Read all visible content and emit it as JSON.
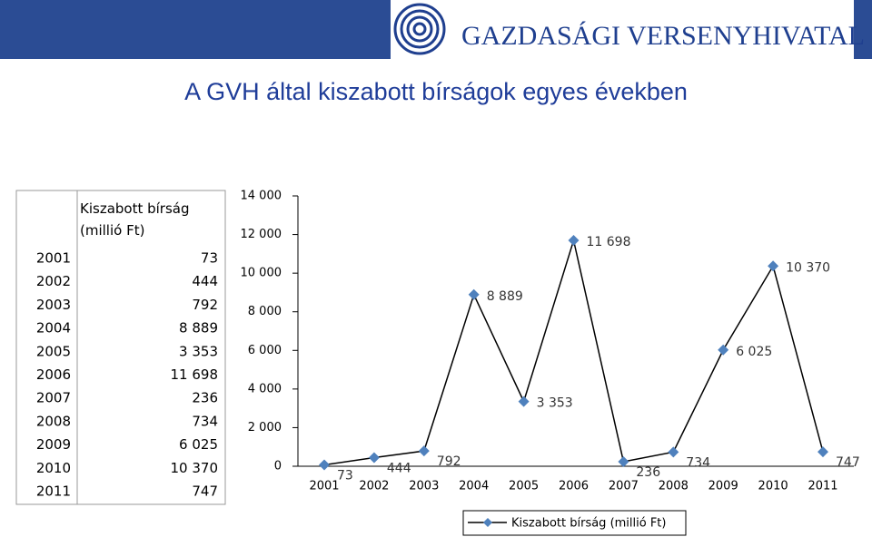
{
  "header": {
    "logo_text": "GAZDASÁGI VERSENYHIVATAL"
  },
  "table": {
    "header": "Kiszabott bírság (millió Ft)",
    "rows": [
      [
        "2001",
        "73"
      ],
      [
        "2002",
        "444"
      ],
      [
        "2003",
        "792"
      ],
      [
        "2004",
        "8 889"
      ],
      [
        "2005",
        "3 353"
      ],
      [
        "2006",
        "11 698"
      ],
      [
        "2007",
        "236"
      ],
      [
        "2008",
        "734"
      ],
      [
        "2009",
        "6 025"
      ],
      [
        "2010",
        "10 370"
      ],
      [
        "2011",
        "747"
      ]
    ]
  },
  "chart_data": {
    "type": "line",
    "title": "A GVH által kiszabott bírságok egyes években",
    "categories": [
      "2001",
      "2002",
      "2003",
      "2004",
      "2005",
      "2006",
      "2007",
      "2008",
      "2009",
      "2010",
      "2011"
    ],
    "series": [
      {
        "name": "Kiszabott bírság (millió Ft)",
        "color": "#4f81bd",
        "line_color": "#000000",
        "values": [
          73,
          444,
          792,
          8889,
          3353,
          11698,
          236,
          734,
          6025,
          10370,
          747
        ],
        "value_labels": [
          "73",
          "444",
          "792",
          "8 889",
          "3 353",
          "11 698",
          "236",
          "734",
          "6 025",
          "10 370",
          "747"
        ]
      }
    ],
    "ylim": [
      0,
      14000
    ],
    "yticks": [
      0,
      {
        "value": 2000,
        "label": "2 000"
      },
      {
        "value": 4000,
        "label": "4 000"
      },
      {
        "value": 6000,
        "label": "6 000"
      },
      {
        "value": 8000,
        "label": "8 000"
      },
      {
        "value": 10000,
        "label": "10 000"
      },
      {
        "value": 12000,
        "label": "12 000"
      },
      {
        "value": 14000,
        "label": "14 000"
      }
    ],
    "legend": "bottom"
  }
}
